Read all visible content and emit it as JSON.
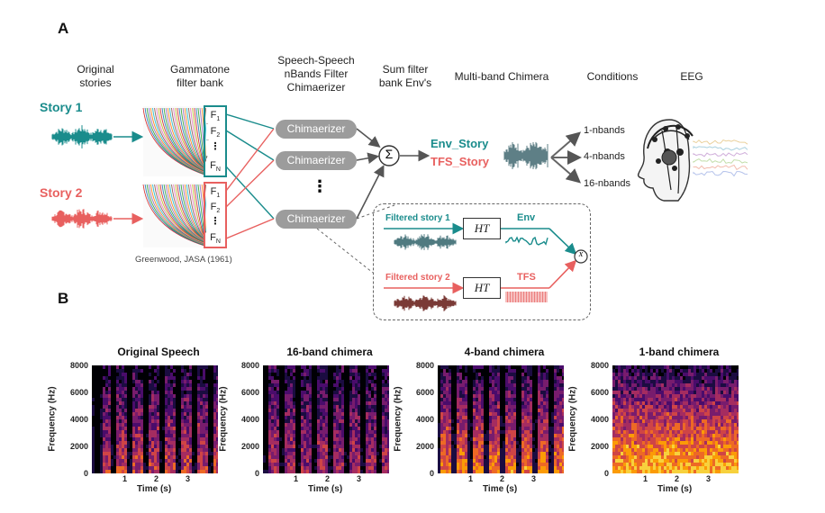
{
  "panel_a": {
    "letter": "A",
    "headers": {
      "original": "Original\nstories",
      "gammatone": "Gammatone\nfilter bank",
      "speech_speech": "Speech-Speech\nnBands Filter\nChimaerizer",
      "sum_filter": "Sum filter\nbank Env's",
      "multiband": "Multi-band Chimera",
      "conditions": "Conditions",
      "eeg": "EEG"
    },
    "story1": "Story 1",
    "story2": "Story 2",
    "filters": {
      "f1": "F",
      "f1_sub": "1",
      "f2": "F",
      "f2_sub": "2",
      "fn": "F",
      "fn_sub": "N"
    },
    "chimaerizer_label": "Chimaerizer",
    "sum_symbol": "Σ",
    "env_story": "Env_Story",
    "tfs_story": "TFS_Story",
    "conditions": [
      "1-nbands",
      "4-nbands",
      "16-nbands"
    ],
    "citation": "Greenwood, JASA (1961)",
    "inset": {
      "filtered1": "Filtered story 1",
      "filtered2": "Filtered story 2",
      "ht": "HT",
      "env": "Env",
      "tfs": "TFS",
      "multiply": "x"
    },
    "colors": {
      "story1": "#1a8c8c",
      "story2": "#e8605f",
      "chimaerizer": "#9c9c9c"
    }
  },
  "panel_b": {
    "letter": "B",
    "spectrograms": [
      {
        "title": "Original Speech",
        "variant": "orig"
      },
      {
        "title": "16-band chimera",
        "variant": "c16"
      },
      {
        "title": "4-band chimera",
        "variant": "c4"
      },
      {
        "title": "1-band chimera",
        "variant": "c1"
      }
    ],
    "y_ticks": [
      "8000",
      "6000",
      "4000",
      "2000",
      "0"
    ],
    "x_ticks": [
      "1",
      "2",
      "3"
    ],
    "xlabel": "Time (s)",
    "ylabel": "Frequency (Hz)"
  }
}
